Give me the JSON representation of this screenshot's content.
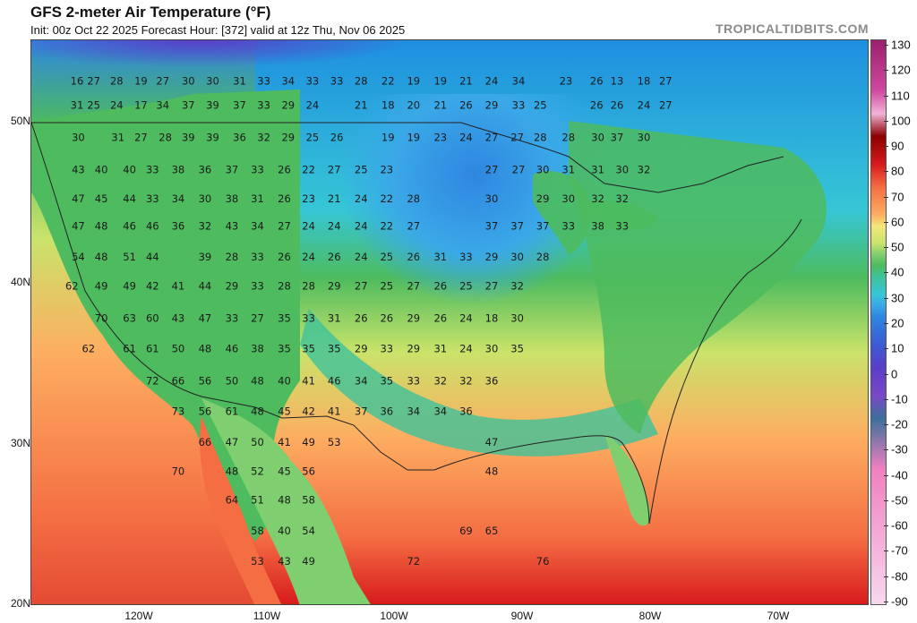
{
  "header": {
    "title": "GFS 2-meter Air Temperature (°F)",
    "subtitle": "Init: 00z Oct 22 2025   Forecast Hour: [372]   valid at 12z Thu, Nov 06 2025",
    "watermark": "TROPICALTIDBITS.COM"
  },
  "axes": {
    "latitudes": [
      "50N",
      "40N",
      "30N",
      "20N"
    ],
    "longitudes": [
      "120W",
      "110W",
      "100W",
      "90W",
      "80W",
      "70W"
    ]
  },
  "colorbar": {
    "unit": "°F",
    "labels": [
      "130",
      "120",
      "110",
      "100",
      "90",
      "80",
      "70",
      "60",
      "50",
      "40",
      "30",
      "20",
      "10",
      "0",
      "-10",
      "-20",
      "-30",
      "-40",
      "-50",
      "-60",
      "-70",
      "-80",
      "-90"
    ],
    "colors": {
      "130": "#9c1f6e",
      "110": "#d04a9f",
      "100": "#f2b3d9",
      "90": "#8b0000",
      "80": "#d7191c",
      "70": "#f46d43",
      "60": "#fdae61",
      "55": "#f1e87a",
      "50": "#c9e36a",
      "45": "#7fce6f",
      "40": "#4dbb5e",
      "35": "#3fc29a",
      "30": "#36c6d6",
      "25": "#3aa8e8",
      "20": "#2f86e0",
      "10": "#3b5bd4",
      "0": "#5a3ec7",
      "-10": "#7b47c9",
      "-20": "#3b6f9a",
      "-40": "#f080c0"
    }
  },
  "temperature_labels": [
    {
      "v": "16",
      "lon": -124.9,
      "lat": 52.6
    },
    {
      "v": "27",
      "lon": -123.6,
      "lat": 52.6
    },
    {
      "v": "28",
      "lon": -121.8,
      "lat": 52.6
    },
    {
      "v": "19",
      "lon": -119.9,
      "lat": 52.6
    },
    {
      "v": "27",
      "lon": -118.2,
      "lat": 52.6
    },
    {
      "v": "30",
      "lon": -116.2,
      "lat": 52.6
    },
    {
      "v": "30",
      "lon": -114.3,
      "lat": 52.6
    },
    {
      "v": "31",
      "lon": -112.2,
      "lat": 52.6
    },
    {
      "v": "33",
      "lon": -110.3,
      "lat": 52.6
    },
    {
      "v": "34",
      "lon": -108.4,
      "lat": 52.6
    },
    {
      "v": "33",
      "lon": -106.5,
      "lat": 52.6
    },
    {
      "v": "33",
      "lon": -104.6,
      "lat": 52.6
    },
    {
      "v": "28",
      "lon": -102.7,
      "lat": 52.6
    },
    {
      "v": "22",
      "lon": -100.6,
      "lat": 52.6
    },
    {
      "v": "19",
      "lon": -98.6,
      "lat": 52.6
    },
    {
      "v": "19",
      "lon": -96.5,
      "lat": 52.6
    },
    {
      "v": "21",
      "lon": -94.5,
      "lat": 52.6
    },
    {
      "v": "24",
      "lon": -92.5,
      "lat": 52.6
    },
    {
      "v": "34",
      "lon": -90.4,
      "lat": 52.6
    },
    {
      "v": "23",
      "lon": -86.7,
      "lat": 52.6
    },
    {
      "v": "26",
      "lon": -84.3,
      "lat": 52.6
    },
    {
      "v": "13",
      "lon": -82.7,
      "lat": 52.6
    },
    {
      "v": "18",
      "lon": -80.6,
      "lat": 52.6
    },
    {
      "v": "27",
      "lon": -78.9,
      "lat": 52.6
    },
    {
      "v": "31",
      "lon": -124.9,
      "lat": 51.1
    },
    {
      "v": "25",
      "lon": -123.6,
      "lat": 51.1
    },
    {
      "v": "24",
      "lon": -121.8,
      "lat": 51.1
    },
    {
      "v": "17",
      "lon": -119.9,
      "lat": 51.1
    },
    {
      "v": "34",
      "lon": -118.2,
      "lat": 51.1
    },
    {
      "v": "37",
      "lon": -116.2,
      "lat": 51.1
    },
    {
      "v": "39",
      "lon": -114.3,
      "lat": 51.1
    },
    {
      "v": "37",
      "lon": -112.2,
      "lat": 51.1
    },
    {
      "v": "33",
      "lon": -110.3,
      "lat": 51.1
    },
    {
      "v": "29",
      "lon": -108.4,
      "lat": 51.1
    },
    {
      "v": "24",
      "lon": -106.5,
      "lat": 51.1
    },
    {
      "v": "21",
      "lon": -102.7,
      "lat": 51.1
    },
    {
      "v": "18",
      "lon": -100.6,
      "lat": 51.1
    },
    {
      "v": "20",
      "lon": -98.6,
      "lat": 51.1
    },
    {
      "v": "21",
      "lon": -96.5,
      "lat": 51.1
    },
    {
      "v": "26",
      "lon": -94.5,
      "lat": 51.1
    },
    {
      "v": "29",
      "lon": -92.5,
      "lat": 51.1
    },
    {
      "v": "33",
      "lon": -90.4,
      "lat": 51.1
    },
    {
      "v": "25",
      "lon": -88.7,
      "lat": 51.1
    },
    {
      "v": "26",
      "lon": -84.3,
      "lat": 51.1
    },
    {
      "v": "26",
      "lon": -82.7,
      "lat": 51.1
    },
    {
      "v": "24",
      "lon": -80.6,
      "lat": 51.1
    },
    {
      "v": "27",
      "lon": -78.9,
      "lat": 51.1
    },
    {
      "v": "30",
      "lon": -124.8,
      "lat": 49.1
    },
    {
      "v": "31",
      "lon": -121.7,
      "lat": 49.1
    },
    {
      "v": "27",
      "lon": -119.9,
      "lat": 49.1
    },
    {
      "v": "28",
      "lon": -118.0,
      "lat": 49.1
    },
    {
      "v": "39",
      "lon": -116.2,
      "lat": 49.1
    },
    {
      "v": "39",
      "lon": -114.3,
      "lat": 49.1
    },
    {
      "v": "36",
      "lon": -112.2,
      "lat": 49.1
    },
    {
      "v": "32",
      "lon": -110.3,
      "lat": 49.1
    },
    {
      "v": "29",
      "lon": -108.4,
      "lat": 49.1
    },
    {
      "v": "25",
      "lon": -106.5,
      "lat": 49.1
    },
    {
      "v": "26",
      "lon": -104.6,
      "lat": 49.1
    },
    {
      "v": "19",
      "lon": -100.6,
      "lat": 49.1
    },
    {
      "v": "19",
      "lon": -98.6,
      "lat": 49.1
    },
    {
      "v": "23",
      "lon": -96.5,
      "lat": 49.1
    },
    {
      "v": "24",
      "lon": -94.5,
      "lat": 49.1
    },
    {
      "v": "27",
      "lon": -92.5,
      "lat": 49.1
    },
    {
      "v": "27",
      "lon": -90.5,
      "lat": 49.1
    },
    {
      "v": "28",
      "lon": -88.7,
      "lat": 49.1
    },
    {
      "v": "28",
      "lon": -86.5,
      "lat": 49.1
    },
    {
      "v": "30",
      "lon": -84.2,
      "lat": 49.1
    },
    {
      "v": "37",
      "lon": -82.7,
      "lat": 49.1
    },
    {
      "v": "30",
      "lon": -80.6,
      "lat": 49.1
    },
    {
      "v": "43",
      "lon": -124.8,
      "lat": 47.1
    },
    {
      "v": "40",
      "lon": -123.0,
      "lat": 47.1
    },
    {
      "v": "40",
      "lon": -120.8,
      "lat": 47.1
    },
    {
      "v": "33",
      "lon": -119.0,
      "lat": 47.1
    },
    {
      "v": "38",
      "lon": -117.0,
      "lat": 47.1
    },
    {
      "v": "36",
      "lon": -114.9,
      "lat": 47.1
    },
    {
      "v": "37",
      "lon": -112.8,
      "lat": 47.1
    },
    {
      "v": "33",
      "lon": -110.8,
      "lat": 47.1
    },
    {
      "v": "26",
      "lon": -108.7,
      "lat": 47.1
    },
    {
      "v": "22",
      "lon": -106.8,
      "lat": 47.1
    },
    {
      "v": "27",
      "lon": -104.8,
      "lat": 47.1
    },
    {
      "v": "25",
      "lon": -102.7,
      "lat": 47.1
    },
    {
      "v": "23",
      "lon": -100.7,
      "lat": 47.1
    },
    {
      "v": "27",
      "lon": -92.5,
      "lat": 47.1
    },
    {
      "v": "27",
      "lon": -90.4,
      "lat": 47.1
    },
    {
      "v": "30",
      "lon": -88.5,
      "lat": 47.1
    },
    {
      "v": "31",
      "lon": -86.5,
      "lat": 47.1
    },
    {
      "v": "31",
      "lon": -84.2,
      "lat": 47.1
    },
    {
      "v": "30",
      "lon": -82.3,
      "lat": 47.1
    },
    {
      "v": "32",
      "lon": -80.6,
      "lat": 47.1
    },
    {
      "v": "47",
      "lon": -124.8,
      "lat": 45.3
    },
    {
      "v": "45",
      "lon": -123.0,
      "lat": 45.3
    },
    {
      "v": "44",
      "lon": -120.8,
      "lat": 45.3
    },
    {
      "v": "33",
      "lon": -119.0,
      "lat": 45.3
    },
    {
      "v": "34",
      "lon": -117.0,
      "lat": 45.3
    },
    {
      "v": "30",
      "lon": -114.9,
      "lat": 45.3
    },
    {
      "v": "38",
      "lon": -112.8,
      "lat": 45.3
    },
    {
      "v": "31",
      "lon": -110.8,
      "lat": 45.3
    },
    {
      "v": "26",
      "lon": -108.7,
      "lat": 45.3
    },
    {
      "v": "23",
      "lon": -106.8,
      "lat": 45.3
    },
    {
      "v": "21",
      "lon": -104.8,
      "lat": 45.3
    },
    {
      "v": "24",
      "lon": -102.7,
      "lat": 45.3
    },
    {
      "v": "22",
      "lon": -100.7,
      "lat": 45.3
    },
    {
      "v": "28",
      "lon": -98.6,
      "lat": 45.3
    },
    {
      "v": "30",
      "lon": -92.5,
      "lat": 45.3
    },
    {
      "v": "29",
      "lon": -88.5,
      "lat": 45.3
    },
    {
      "v": "30",
      "lon": -86.5,
      "lat": 45.3
    },
    {
      "v": "32",
      "lon": -84.2,
      "lat": 45.3
    },
    {
      "v": "32",
      "lon": -82.3,
      "lat": 45.3
    },
    {
      "v": "47",
      "lon": -124.8,
      "lat": 43.6
    },
    {
      "v": "48",
      "lon": -123.0,
      "lat": 43.6
    },
    {
      "v": "46",
      "lon": -120.8,
      "lat": 43.6
    },
    {
      "v": "46",
      "lon": -119.0,
      "lat": 43.6
    },
    {
      "v": "36",
      "lon": -117.0,
      "lat": 43.6
    },
    {
      "v": "32",
      "lon": -114.9,
      "lat": 43.6
    },
    {
      "v": "43",
      "lon": -112.8,
      "lat": 43.6
    },
    {
      "v": "34",
      "lon": -110.8,
      "lat": 43.6
    },
    {
      "v": "27",
      "lon": -108.7,
      "lat": 43.6
    },
    {
      "v": "24",
      "lon": -106.8,
      "lat": 43.6
    },
    {
      "v": "24",
      "lon": -104.8,
      "lat": 43.6
    },
    {
      "v": "24",
      "lon": -102.7,
      "lat": 43.6
    },
    {
      "v": "22",
      "lon": -100.7,
      "lat": 43.6
    },
    {
      "v": "27",
      "lon": -98.6,
      "lat": 43.6
    },
    {
      "v": "37",
      "lon": -92.5,
      "lat": 43.6
    },
    {
      "v": "37",
      "lon": -90.5,
      "lat": 43.6
    },
    {
      "v": "37",
      "lon": -88.5,
      "lat": 43.6
    },
    {
      "v": "33",
      "lon": -86.5,
      "lat": 43.6
    },
    {
      "v": "38",
      "lon": -84.2,
      "lat": 43.6
    },
    {
      "v": "33",
      "lon": -82.3,
      "lat": 43.6
    },
    {
      "v": "54",
      "lon": -124.8,
      "lat": 41.7
    },
    {
      "v": "48",
      "lon": -123.0,
      "lat": 41.7
    },
    {
      "v": "51",
      "lon": -120.8,
      "lat": 41.7
    },
    {
      "v": "44",
      "lon": -119.0,
      "lat": 41.7
    },
    {
      "v": "39",
      "lon": -114.9,
      "lat": 41.7
    },
    {
      "v": "28",
      "lon": -112.8,
      "lat": 41.7
    },
    {
      "v": "33",
      "lon": -110.8,
      "lat": 41.7
    },
    {
      "v": "26",
      "lon": -108.7,
      "lat": 41.7
    },
    {
      "v": "24",
      "lon": -106.8,
      "lat": 41.7
    },
    {
      "v": "26",
      "lon": -104.8,
      "lat": 41.7
    },
    {
      "v": "24",
      "lon": -102.7,
      "lat": 41.7
    },
    {
      "v": "25",
      "lon": -100.7,
      "lat": 41.7
    },
    {
      "v": "26",
      "lon": -98.6,
      "lat": 41.7
    },
    {
      "v": "31",
      "lon": -96.5,
      "lat": 41.7
    },
    {
      "v": "33",
      "lon": -94.5,
      "lat": 41.7
    },
    {
      "v": "29",
      "lon": -92.5,
      "lat": 41.7
    },
    {
      "v": "30",
      "lon": -90.5,
      "lat": 41.7
    },
    {
      "v": "28",
      "lon": -88.5,
      "lat": 41.7
    },
    {
      "v": "62",
      "lon": -125.3,
      "lat": 39.9
    },
    {
      "v": "49",
      "lon": -123.0,
      "lat": 39.9
    },
    {
      "v": "49",
      "lon": -120.8,
      "lat": 39.9
    },
    {
      "v": "42",
      "lon": -119.0,
      "lat": 39.9
    },
    {
      "v": "41",
      "lon": -117.0,
      "lat": 39.9
    },
    {
      "v": "44",
      "lon": -114.9,
      "lat": 39.9
    },
    {
      "v": "29",
      "lon": -112.8,
      "lat": 39.9
    },
    {
      "v": "33",
      "lon": -110.8,
      "lat": 39.9
    },
    {
      "v": "28",
      "lon": -108.7,
      "lat": 39.9
    },
    {
      "v": "28",
      "lon": -106.8,
      "lat": 39.9
    },
    {
      "v": "29",
      "lon": -104.8,
      "lat": 39.9
    },
    {
      "v": "27",
      "lon": -102.7,
      "lat": 39.9
    },
    {
      "v": "25",
      "lon": -100.7,
      "lat": 39.9
    },
    {
      "v": "27",
      "lon": -98.6,
      "lat": 39.9
    },
    {
      "v": "26",
      "lon": -96.5,
      "lat": 39.9
    },
    {
      "v": "25",
      "lon": -94.5,
      "lat": 39.9
    },
    {
      "v": "27",
      "lon": -92.5,
      "lat": 39.9
    },
    {
      "v": "32",
      "lon": -90.5,
      "lat": 39.9
    },
    {
      "v": "70",
      "lon": -123.0,
      "lat": 37.9
    },
    {
      "v": "63",
      "lon": -120.8,
      "lat": 37.9
    },
    {
      "v": "60",
      "lon": -119.0,
      "lat": 37.9
    },
    {
      "v": "43",
      "lon": -117.0,
      "lat": 37.9
    },
    {
      "v": "47",
      "lon": -114.9,
      "lat": 37.9
    },
    {
      "v": "33",
      "lon": -112.8,
      "lat": 37.9
    },
    {
      "v": "27",
      "lon": -110.8,
      "lat": 37.9
    },
    {
      "v": "35",
      "lon": -108.7,
      "lat": 37.9
    },
    {
      "v": "33",
      "lon": -106.8,
      "lat": 37.9
    },
    {
      "v": "31",
      "lon": -104.8,
      "lat": 37.9
    },
    {
      "v": "26",
      "lon": -102.7,
      "lat": 37.9
    },
    {
      "v": "26",
      "lon": -100.7,
      "lat": 37.9
    },
    {
      "v": "29",
      "lon": -98.6,
      "lat": 37.9
    },
    {
      "v": "26",
      "lon": -96.5,
      "lat": 37.9
    },
    {
      "v": "24",
      "lon": -94.5,
      "lat": 37.9
    },
    {
      "v": "18",
      "lon": -92.5,
      "lat": 37.9
    },
    {
      "v": "30",
      "lon": -90.5,
      "lat": 37.9
    },
    {
      "v": "62",
      "lon": -124.0,
      "lat": 36.0
    },
    {
      "v": "61",
      "lon": -120.8,
      "lat": 36.0
    },
    {
      "v": "61",
      "lon": -119.0,
      "lat": 36.0
    },
    {
      "v": "50",
      "lon": -117.0,
      "lat": 36.0
    },
    {
      "v": "48",
      "lon": -114.9,
      "lat": 36.0
    },
    {
      "v": "46",
      "lon": -112.8,
      "lat": 36.0
    },
    {
      "v": "38",
      "lon": -110.8,
      "lat": 36.0
    },
    {
      "v": "35",
      "lon": -108.7,
      "lat": 36.0
    },
    {
      "v": "35",
      "lon": -106.8,
      "lat": 36.0
    },
    {
      "v": "35",
      "lon": -104.8,
      "lat": 36.0
    },
    {
      "v": "29",
      "lon": -102.7,
      "lat": 36.0
    },
    {
      "v": "33",
      "lon": -100.7,
      "lat": 36.0
    },
    {
      "v": "29",
      "lon": -98.6,
      "lat": 36.0
    },
    {
      "v": "31",
      "lon": -96.5,
      "lat": 36.0
    },
    {
      "v": "24",
      "lon": -94.5,
      "lat": 36.0
    },
    {
      "v": "30",
      "lon": -92.5,
      "lat": 36.0
    },
    {
      "v": "35",
      "lon": -90.5,
      "lat": 36.0
    },
    {
      "v": "72",
      "lon": -119.0,
      "lat": 34.0
    },
    {
      "v": "66",
      "lon": -117.0,
      "lat": 34.0
    },
    {
      "v": "56",
      "lon": -114.9,
      "lat": 34.0
    },
    {
      "v": "50",
      "lon": -112.8,
      "lat": 34.0
    },
    {
      "v": "48",
      "lon": -110.8,
      "lat": 34.0
    },
    {
      "v": "40",
      "lon": -108.7,
      "lat": 34.0
    },
    {
      "v": "41",
      "lon": -106.8,
      "lat": 34.0
    },
    {
      "v": "46",
      "lon": -104.8,
      "lat": 34.0
    },
    {
      "v": "34",
      "lon": -102.7,
      "lat": 34.0
    },
    {
      "v": "35",
      "lon": -100.7,
      "lat": 34.0
    },
    {
      "v": "33",
      "lon": -98.6,
      "lat": 34.0
    },
    {
      "v": "32",
      "lon": -96.5,
      "lat": 34.0
    },
    {
      "v": "32",
      "lon": -94.5,
      "lat": 34.0
    },
    {
      "v": "36",
      "lon": -92.5,
      "lat": 34.0
    },
    {
      "v": "73",
      "lon": -117.0,
      "lat": 32.1
    },
    {
      "v": "56",
      "lon": -114.9,
      "lat": 32.1
    },
    {
      "v": "61",
      "lon": -112.8,
      "lat": 32.1
    },
    {
      "v": "48",
      "lon": -110.8,
      "lat": 32.1
    },
    {
      "v": "45",
      "lon": -108.7,
      "lat": 32.1
    },
    {
      "v": "42",
      "lon": -106.8,
      "lat": 32.1
    },
    {
      "v": "41",
      "lon": -104.8,
      "lat": 32.1
    },
    {
      "v": "37",
      "lon": -102.7,
      "lat": 32.1
    },
    {
      "v": "36",
      "lon": -100.7,
      "lat": 32.1
    },
    {
      "v": "34",
      "lon": -98.6,
      "lat": 32.1
    },
    {
      "v": "34",
      "lon": -96.5,
      "lat": 32.1
    },
    {
      "v": "36",
      "lon": -94.5,
      "lat": 32.1
    },
    {
      "v": "66",
      "lon": -114.9,
      "lat": 30.2
    },
    {
      "v": "47",
      "lon": -112.8,
      "lat": 30.2
    },
    {
      "v": "50",
      "lon": -110.8,
      "lat": 30.2
    },
    {
      "v": "41",
      "lon": -108.7,
      "lat": 30.2
    },
    {
      "v": "49",
      "lon": -106.8,
      "lat": 30.2
    },
    {
      "v": "53",
      "lon": -104.8,
      "lat": 30.2
    },
    {
      "v": "47",
      "lon": -92.5,
      "lat": 30.2
    },
    {
      "v": "70",
      "lon": -117.0,
      "lat": 28.4
    },
    {
      "v": "48",
      "lon": -112.8,
      "lat": 28.4
    },
    {
      "v": "52",
      "lon": -110.8,
      "lat": 28.4
    },
    {
      "v": "45",
      "lon": -108.7,
      "lat": 28.4
    },
    {
      "v": "56",
      "lon": -106.8,
      "lat": 28.4
    },
    {
      "v": "48",
      "lon": -92.5,
      "lat": 28.4
    },
    {
      "v": "64",
      "lon": -112.8,
      "lat": 26.6
    },
    {
      "v": "51",
      "lon": -110.8,
      "lat": 26.6
    },
    {
      "v": "48",
      "lon": -108.7,
      "lat": 26.6
    },
    {
      "v": "58",
      "lon": -106.8,
      "lat": 26.6
    },
    {
      "v": "58",
      "lon": -110.8,
      "lat": 24.7
    },
    {
      "v": "40",
      "lon": -108.7,
      "lat": 24.7
    },
    {
      "v": "54",
      "lon": -106.8,
      "lat": 24.7
    },
    {
      "v": "69",
      "lon": -94.5,
      "lat": 24.7
    },
    {
      "v": "65",
      "lon": -92.5,
      "lat": 24.7
    },
    {
      "v": "53",
      "lon": -110.8,
      "lat": 22.8
    },
    {
      "v": "43",
      "lon": -108.7,
      "lat": 22.8
    },
    {
      "v": "49",
      "lon": -106.8,
      "lat": 22.8
    },
    {
      "v": "72",
      "lon": -98.6,
      "lat": 22.8
    },
    {
      "v": "76",
      "lon": -88.5,
      "lat": 22.8
    }
  ]
}
